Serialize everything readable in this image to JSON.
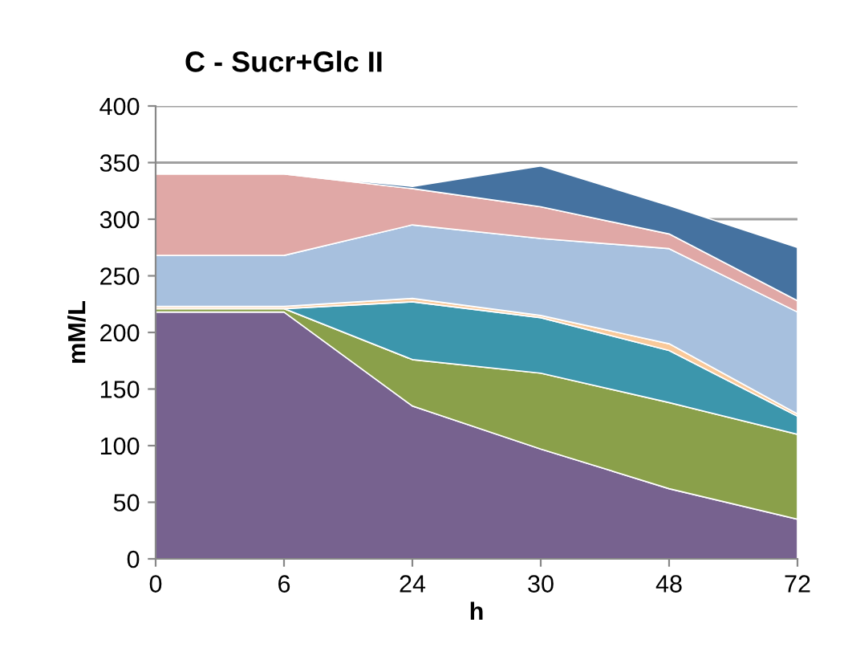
{
  "chart_data": {
    "type": "area",
    "stacked": true,
    "title": "C - Sucr+Glc II",
    "xlabel": "h",
    "ylabel": "mM/L",
    "categories": [
      "0",
      "6",
      "24",
      "30",
      "48",
      "72"
    ],
    "ylim": [
      0,
      400
    ],
    "yticks": [
      0,
      50,
      100,
      150,
      200,
      250,
      300,
      350,
      400
    ],
    "grid": "y",
    "series": [
      {
        "color": "#77628f",
        "values": [
          218,
          218,
          135,
          97,
          62,
          35
        ]
      },
      {
        "color": "#8aa04a",
        "values": [
          3,
          3,
          41,
          67,
          76,
          75
        ]
      },
      {
        "color": "#3c96ac",
        "values": [
          0,
          0,
          51,
          49,
          46,
          16
        ]
      },
      {
        "color": "#f9c99a",
        "values": [
          2,
          2,
          3,
          2,
          6,
          2
        ]
      },
      {
        "color": "#a7c0de",
        "values": [
          45,
          45,
          65,
          68,
          84,
          90
        ]
      },
      {
        "color": "#e0a8a6",
        "values": [
          72,
          72,
          32,
          28,
          13,
          10
        ]
      },
      {
        "color": "#4572a0",
        "values": [
          0,
          0,
          2,
          36,
          25,
          47
        ]
      }
    ]
  }
}
